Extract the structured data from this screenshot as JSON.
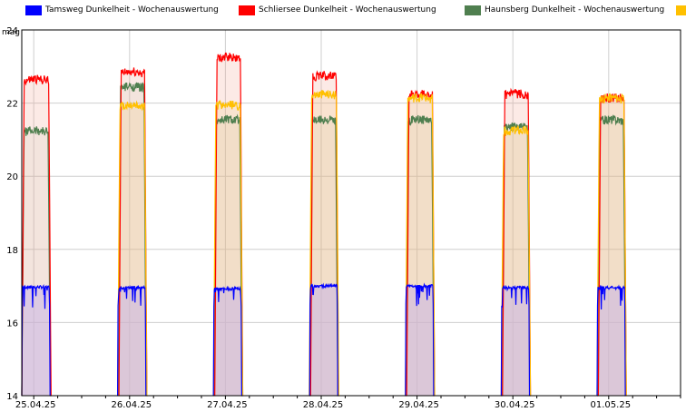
{
  "chart_data": {
    "type": "area",
    "ylabel": "mag",
    "ylim": [
      14,
      24
    ],
    "yticks": [
      14,
      16,
      18,
      20,
      22,
      24
    ],
    "xlim": [
      "2025-04-24 21:00",
      "2025-05-01 18:00"
    ],
    "date_ticks": [
      {
        "date": "2025-04-25 00:00",
        "label": "25.04.25"
      },
      {
        "date": "2025-04-26 00:00",
        "label": "26.04.25"
      },
      {
        "date": "2025-04-27 00:00",
        "label": "27.04.25"
      },
      {
        "date": "2025-04-28 00:00",
        "label": "28.04.25"
      },
      {
        "date": "2025-04-29 00:00",
        "label": "29.04.25"
      },
      {
        "date": "2025-04-30 00:00",
        "label": "30.04.25"
      },
      {
        "date": "2025-05-01 00:00",
        "label": "01.05.25"
      }
    ],
    "grid": true,
    "legend_position": "top",
    "series": [
      {
        "name": "Tamsweg  Dunkelheit - Wochenauswertung",
        "color": "#0000ff",
        "nights": [
          {
            "start": "2025-04-24 21:00",
            "end": "2025-04-25 04:05",
            "level": 16.97
          },
          {
            "start": "2025-04-25 21:00",
            "end": "2025-04-26 04:05",
            "level": 16.95
          },
          {
            "start": "2025-04-26 21:00",
            "end": "2025-04-27 04:05",
            "level": 16.92
          },
          {
            "start": "2025-04-27 21:05",
            "end": "2025-04-28 04:10",
            "level": 17.0
          },
          {
            "start": "2025-04-28 21:05",
            "end": "2025-04-29 04:10",
            "level": 17.0
          },
          {
            "start": "2025-04-29 21:05",
            "end": "2025-04-30 04:10",
            "level": 16.95
          },
          {
            "start": "2025-04-30 21:05",
            "end": "2025-05-01 04:10",
            "level": 16.95
          }
        ]
      },
      {
        "name": "Schliersee  Dunkelheit - Wochenauswertung",
        "color": "#ff0000",
        "nights": [
          {
            "start": "2025-04-24 21:00",
            "end": "2025-04-25 04:20",
            "level": 22.6
          },
          {
            "start": "2025-04-25 21:20",
            "end": "2025-04-26 04:20",
            "level": 22.8
          },
          {
            "start": "2025-04-26 21:20",
            "end": "2025-04-27 04:20",
            "level": 23.2
          },
          {
            "start": "2025-04-27 21:20",
            "end": "2025-04-28 04:20",
            "level": 22.7
          },
          {
            "start": "2025-04-28 21:25",
            "end": "2025-04-29 04:25",
            "level": 22.2
          },
          {
            "start": "2025-04-29 21:25",
            "end": "2025-04-30 04:25",
            "level": 22.2
          },
          {
            "start": "2025-04-30 21:25",
            "end": "2025-05-01 04:25",
            "level": 22.1
          }
        ]
      },
      {
        "name": "Haunsberg  Dunkelheit - Wochenauswertung",
        "color": "#4f7f4f",
        "nights": [
          {
            "start": "2025-04-24 21:00",
            "end": "2025-04-25 04:10",
            "level": 21.2
          },
          {
            "start": "2025-04-25 21:10",
            "end": "2025-04-26 04:10",
            "level": 22.4
          },
          {
            "start": "2025-04-26 21:10",
            "end": "2025-04-27 04:10",
            "level": 21.5
          },
          {
            "start": "2025-04-27 21:10",
            "end": "2025-04-28 04:10",
            "level": 21.5
          },
          {
            "start": "2025-04-28 21:15",
            "end": "2025-04-29 04:15",
            "level": 21.5
          },
          {
            "start": "2025-04-29 21:15",
            "end": "2025-04-30 04:15",
            "level": 21.3
          },
          {
            "start": "2025-04-30 21:15",
            "end": "2025-05-01 04:15",
            "level": 21.5
          }
        ]
      },
      {
        "name": "",
        "color": "#ffc000",
        "nights": [
          {
            "start": "2025-04-25 21:00",
            "end": "2025-04-26 04:20",
            "level": 21.9
          },
          {
            "start": "2025-04-26 21:00",
            "end": "2025-04-27 04:20",
            "level": 21.9
          },
          {
            "start": "2025-04-27 21:00",
            "end": "2025-04-28 04:25",
            "level": 22.2
          },
          {
            "start": "2025-04-28 21:05",
            "end": "2025-04-29 04:25",
            "level": 22.1
          },
          {
            "start": "2025-04-29 21:05",
            "end": "2025-04-30 04:25",
            "level": 21.2
          },
          {
            "start": "2025-04-30 21:05",
            "end": "2025-05-01 04:25",
            "level": 22.1
          }
        ]
      }
    ]
  }
}
